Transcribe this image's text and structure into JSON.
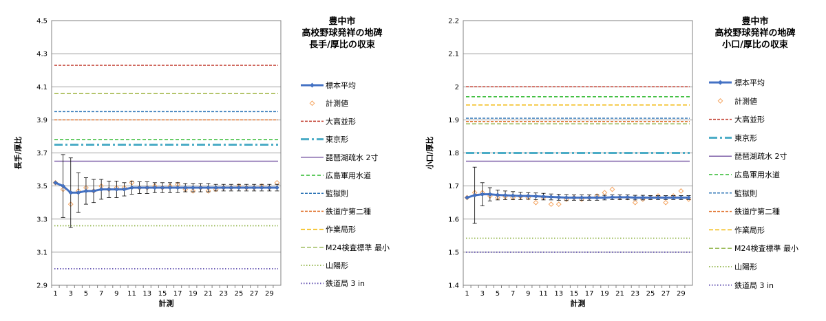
{
  "chart_data": [
    {
      "type": "line",
      "title": [
        "豊中市",
        "高校野球発祥の地碑",
        "長手/厚比の収束"
      ],
      "xlabel": "計測",
      "ylabel": "長手/厚比",
      "ylim": [
        2.9,
        4.5
      ],
      "yticks": [
        "2.9",
        "3.1",
        "3.3",
        "3.5",
        "3.7",
        "3.9",
        "4.1",
        "4.3",
        "4.5"
      ],
      "x": [
        1,
        2,
        3,
        4,
        5,
        6,
        7,
        8,
        9,
        10,
        11,
        12,
        13,
        14,
        15,
        16,
        17,
        18,
        19,
        20,
        21,
        22,
        23,
        24,
        25,
        26,
        27,
        28,
        29,
        30
      ],
      "xticks": [
        "1",
        "3",
        "5",
        "7",
        "9",
        "11",
        "13",
        "15",
        "17",
        "19",
        "21",
        "23",
        "25",
        "27",
        "29"
      ],
      "series": [
        {
          "name": "標本平均",
          "kind": "mean",
          "color": "#4472c4",
          "values": [
            3.52,
            3.5,
            3.46,
            3.46,
            3.47,
            3.47,
            3.48,
            3.48,
            3.48,
            3.48,
            3.49,
            3.49,
            3.49,
            3.49,
            3.49,
            3.49,
            3.49,
            3.49,
            3.49,
            3.49,
            3.49,
            3.49,
            3.49,
            3.49,
            3.49,
            3.49,
            3.49,
            3.49,
            3.49,
            3.49
          ],
          "err": [
            0,
            0.19,
            0.21,
            0.12,
            0.08,
            0.07,
            0.06,
            0.05,
            0.05,
            0.04,
            0.04,
            0.035,
            0.035,
            0.03,
            0.03,
            0.03,
            0.03,
            0.025,
            0.025,
            0.025,
            0.025,
            0.02,
            0.02,
            0.02,
            0.02,
            0.02,
            0.02,
            0.02,
            0.02,
            0.02
          ]
        },
        {
          "name": "計測値",
          "kind": "points",
          "color": "#f4a460",
          "values": [
            3.52,
            3.48,
            3.39,
            3.47,
            3.49,
            3.47,
            3.5,
            3.48,
            3.49,
            3.49,
            3.52,
            3.49,
            3.49,
            3.5,
            3.49,
            3.5,
            3.51,
            3.48,
            3.47,
            3.49,
            3.47,
            3.48,
            3.49,
            3.49,
            3.5,
            3.49,
            3.49,
            3.5,
            3.49,
            3.52
          ]
        },
        {
          "name": "大高並形",
          "kind": "hline",
          "value": 4.23,
          "color": "#c0392b",
          "dash": "4,2",
          "width": 1.5
        },
        {
          "name": "東京形",
          "kind": "hline",
          "value": 3.75,
          "color": "#4bacc6",
          "dash": "12,4,3,4",
          "width": 3
        },
        {
          "name": "琵琶湖疏水 2寸",
          "kind": "hline",
          "value": 3.65,
          "color": "#7f60a8",
          "dash": "",
          "width": 1.5
        },
        {
          "name": "広島軍用水道",
          "kind": "hline",
          "value": 3.78,
          "color": "#2eb82e",
          "dash": "5,3",
          "width": 1.5
        },
        {
          "name": "監獄則",
          "kind": "hline",
          "value": 3.95,
          "color": "#2e75b6",
          "dash": "4,2",
          "width": 1.5
        },
        {
          "name": "鉄道庁第二種",
          "kind": "hline",
          "value": 3.9,
          "color": "#e0712c",
          "dash": "4,2",
          "width": 1.5
        },
        {
          "name": "作業局形",
          "kind": "hline",
          "value": 4.06,
          "color": "#f2b600",
          "dash": "6,3",
          "width": 1.5
        },
        {
          "name": "M24検査標準 最小",
          "kind": "hline",
          "value": 4.06,
          "color": "#9bbb59",
          "dash": "6,3",
          "width": 1.5
        },
        {
          "name": "山陽形",
          "kind": "hline",
          "value": 3.26,
          "color": "#9bbb59",
          "dash": "1.5,2.5",
          "width": 2
        },
        {
          "name": "鉄道局 3 in",
          "kind": "hline",
          "value": 3.0,
          "color": "#6b5bb5",
          "dash": "1.5,2.5",
          "width": 2
        }
      ]
    },
    {
      "type": "line",
      "title": [
        "豊中市",
        "高校野球発祥の地碑",
        "小口/厚比の収束"
      ],
      "xlabel": "計測",
      "ylabel": "小口/厚比",
      "ylim": [
        1.4,
        2.2
      ],
      "yticks": [
        "1.4",
        "1.5",
        "1.6",
        "1.7",
        "1.8",
        "1.9",
        "2",
        "2.1",
        "2.2"
      ],
      "x": [
        1,
        2,
        3,
        4,
        5,
        6,
        7,
        8,
        9,
        10,
        11,
        12,
        13,
        14,
        15,
        16,
        17,
        18,
        19,
        20,
        21,
        22,
        23,
        24,
        25,
        26,
        27,
        28,
        29,
        30
      ],
      "xticks": [
        "1",
        "3",
        "5",
        "7",
        "9",
        "11",
        "13",
        "15",
        "17",
        "19",
        "21",
        "23",
        "25",
        "27",
        "29"
      ],
      "series": [
        {
          "name": "標本平均",
          "kind": "mean",
          "color": "#4472c4",
          "values": [
            1.665,
            1.672,
            1.675,
            1.675,
            1.673,
            1.672,
            1.671,
            1.67,
            1.67,
            1.669,
            1.668,
            1.667,
            1.666,
            1.665,
            1.665,
            1.665,
            1.665,
            1.665,
            1.665,
            1.666,
            1.666,
            1.666,
            1.665,
            1.665,
            1.665,
            1.665,
            1.665,
            1.665,
            1.665,
            1.665
          ],
          "err": [
            0,
            0.085,
            0.035,
            0.02,
            0.015,
            0.013,
            0.012,
            0.011,
            0.01,
            0.01,
            0.01,
            0.009,
            0.009,
            0.009,
            0.008,
            0.008,
            0.008,
            0.008,
            0.007,
            0.007,
            0.007,
            0.007,
            0.007,
            0.007,
            0.006,
            0.006,
            0.006,
            0.006,
            0.006,
            0.006
          ]
        },
        {
          "name": "計測値",
          "kind": "points",
          "color": "#f4a460",
          "values": [
            1.665,
            1.68,
            1.68,
            1.67,
            1.665,
            1.668,
            1.665,
            1.668,
            1.665,
            1.65,
            1.665,
            1.645,
            1.645,
            1.66,
            1.665,
            1.66,
            1.665,
            1.67,
            1.68,
            1.69,
            1.665,
            1.665,
            1.65,
            1.66,
            1.665,
            1.67,
            1.65,
            1.67,
            1.685,
            1.66
          ]
        },
        {
          "name": "大高並形",
          "kind": "hline",
          "value": 2.0,
          "color": "#c0392b",
          "dash": "4,2",
          "width": 1.5
        },
        {
          "name": "東京形",
          "kind": "hline",
          "value": 1.8,
          "color": "#4bacc6",
          "dash": "12,4,3,4",
          "width": 3
        },
        {
          "name": "琵琶湖疏水 2寸",
          "kind": "hline",
          "value": 1.775,
          "color": "#7f60a8",
          "dash": "",
          "width": 1.5
        },
        {
          "name": "広島軍用水道",
          "kind": "hline",
          "value": 1.97,
          "color": "#2eb82e",
          "dash": "5,3",
          "width": 1.5
        },
        {
          "name": "監獄則",
          "kind": "hline",
          "value": 1.905,
          "color": "#2e75b6",
          "dash": "4,2",
          "width": 1.5
        },
        {
          "name": "鉄道庁第二種",
          "kind": "hline",
          "value": 1.895,
          "color": "#e0712c",
          "dash": "4,2",
          "width": 1.5
        },
        {
          "name": "作業局形",
          "kind": "hline",
          "value": 1.945,
          "color": "#f2b600",
          "dash": "6,3",
          "width": 1.5
        },
        {
          "name": "M24検査標準 最小",
          "kind": "hline",
          "value": 1.888,
          "color": "#9bbb59",
          "dash": "6,3",
          "width": 1.5
        },
        {
          "name": "山陽形",
          "kind": "hline",
          "value": 1.542,
          "color": "#9bbb59",
          "dash": "1.5,2.5",
          "width": 2
        },
        {
          "name": "鉄道局 3 in",
          "kind": "hline",
          "value": 1.5,
          "color": "#6b5bb5",
          "dash": "1.5,2.5",
          "width": 2
        }
      ]
    }
  ]
}
